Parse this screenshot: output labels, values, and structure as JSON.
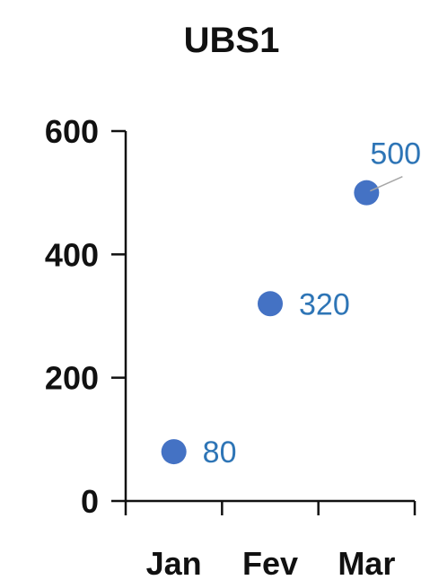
{
  "chart_data": {
    "type": "scatter",
    "title": "UBS1",
    "xlabel": "",
    "ylabel": "",
    "categories": [
      "Jan",
      "Fev",
      "Mar"
    ],
    "values": [
      80,
      320,
      500
    ],
    "data_labels": [
      "80",
      "320",
      "500"
    ],
    "ylim": [
      0,
      600
    ],
    "y_ticks": [
      0,
      200,
      400,
      600
    ],
    "y_tick_labels": [
      "0",
      "200",
      "400",
      "600"
    ],
    "grid": false,
    "legend": "none",
    "colors": {
      "marker": "#4472C4",
      "data_label": "#2E75B6",
      "axis": "#111111",
      "leader_line": "#A6A6A6"
    }
  }
}
